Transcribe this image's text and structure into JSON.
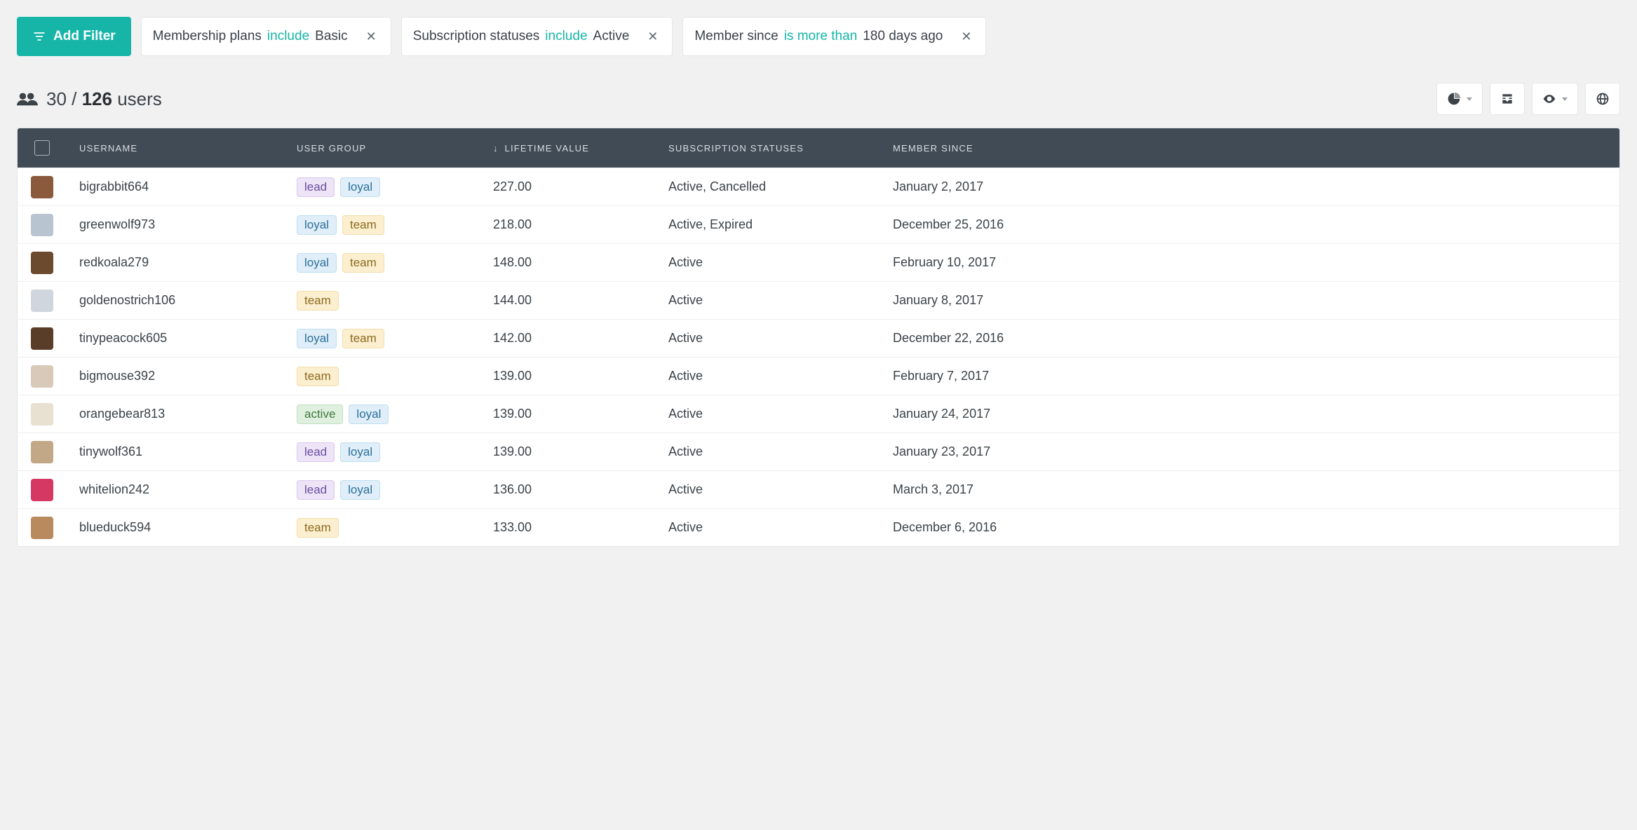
{
  "colors": {
    "accent": "#16b5a8",
    "tableHeaderBg": "#414b55",
    "pageBg": "#f1f1f1"
  },
  "addFilterLabel": "Add Filter",
  "filters": [
    {
      "field": "Membership plans",
      "operator": "include",
      "value": "Basic"
    },
    {
      "field": "Subscription statuses",
      "operator": "include",
      "value": "Active"
    },
    {
      "field": "Member since",
      "operator": "is more than",
      "value": "180 days ago"
    }
  ],
  "summary": {
    "shown": "30",
    "separator": " / ",
    "total": "126",
    "noun": " users"
  },
  "columns": {
    "username": "Username",
    "userGroup": "User Group",
    "lifetimeValue": "Lifetime Value",
    "lifetimeSort": "↓ ",
    "subscriptionStatuses": "Subscription Statuses",
    "memberSince": "Member Since"
  },
  "tagStyles": {
    "lead": {
      "bg": "#ede4f7",
      "border": "#d9c9ec",
      "text": "#6a4da0"
    },
    "loyal": {
      "bg": "#dfeef8",
      "border": "#bfdff1",
      "text": "#2c6f9b"
    },
    "team": {
      "bg": "#fcefcf",
      "border": "#f2deab",
      "text": "#8a6a1f"
    },
    "active": {
      "bg": "#dff0df",
      "border": "#bfe0bf",
      "text": "#3f7a3f"
    }
  },
  "rows": [
    {
      "avatarColor": "#8b5a3c",
      "username": "bigrabbit664",
      "groups": [
        "lead",
        "loyal"
      ],
      "lifetime": "227.00",
      "statuses": "Active, Cancelled",
      "since": "January 2, 2017"
    },
    {
      "avatarColor": "#b8c4d0",
      "username": "greenwolf973",
      "groups": [
        "loyal",
        "team"
      ],
      "lifetime": "218.00",
      "statuses": "Active, Expired",
      "since": "December 25, 2016"
    },
    {
      "avatarColor": "#6b4a2e",
      "username": "redkoala279",
      "groups": [
        "loyal",
        "team"
      ],
      "lifetime": "148.00",
      "statuses": "Active",
      "since": "February 10, 2017"
    },
    {
      "avatarColor": "#cfd6dd",
      "username": "goldenostrich106",
      "groups": [
        "team"
      ],
      "lifetime": "144.00",
      "statuses": "Active",
      "since": "January 8, 2017"
    },
    {
      "avatarColor": "#5a3d28",
      "username": "tinypeacock605",
      "groups": [
        "loyal",
        "team"
      ],
      "lifetime": "142.00",
      "statuses": "Active",
      "since": "December 22, 2016"
    },
    {
      "avatarColor": "#d8c9b8",
      "username": "bigmouse392",
      "groups": [
        "team"
      ],
      "lifetime": "139.00",
      "statuses": "Active",
      "since": "February 7, 2017"
    },
    {
      "avatarColor": "#e8e0d0",
      "username": "orangebear813",
      "groups": [
        "active",
        "loyal"
      ],
      "lifetime": "139.00",
      "statuses": "Active",
      "since": "January 24, 2017"
    },
    {
      "avatarColor": "#c2a886",
      "username": "tinywolf361",
      "groups": [
        "lead",
        "loyal"
      ],
      "lifetime": "139.00",
      "statuses": "Active",
      "since": "January 23, 2017"
    },
    {
      "avatarColor": "#d63864",
      "username": "whitelion242",
      "groups": [
        "lead",
        "loyal"
      ],
      "lifetime": "136.00",
      "statuses": "Active",
      "since": "March 3, 2017"
    },
    {
      "avatarColor": "#b88a5e",
      "username": "blueduck594",
      "groups": [
        "team"
      ],
      "lifetime": "133.00",
      "statuses": "Active",
      "since": "December 6, 2016"
    }
  ]
}
